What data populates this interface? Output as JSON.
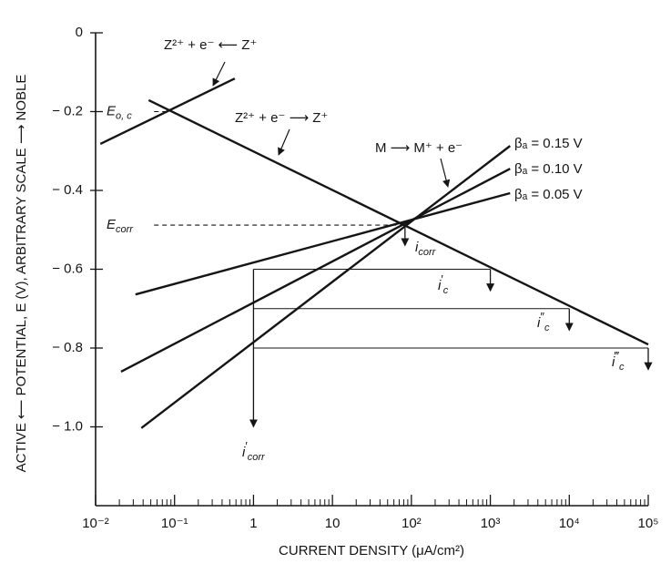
{
  "chart_data": {
    "type": "line",
    "x_label": "CURRENT DENSITY (μA/cm²)",
    "y_label": "ACTIVE ⟵ POTENTIAL, E (V), ARBITRARY SCALE ⟶ NOBLE",
    "xscale": "log",
    "xlim": [
      0.01,
      100000
    ],
    "ylim": [
      -1.2,
      0
    ],
    "xticks": [
      {
        "value": 0.01,
        "label": "10⁻²"
      },
      {
        "value": 0.1,
        "label": "10⁻¹"
      },
      1,
      10,
      {
        "value": 100,
        "label": "10²"
      },
      {
        "value": 1000,
        "label": "10³"
      },
      {
        "value": 10000,
        "label": "10⁴"
      },
      {
        "value": 100000,
        "label": "10⁵"
      }
    ],
    "yticks": [
      0,
      {
        "value": -0.2,
        "label": "− 0.2"
      },
      {
        "value": -0.4,
        "label": "− 0.4"
      },
      {
        "value": -0.6,
        "label": "− 0.6"
      },
      {
        "value": -0.8,
        "label": "− 0.8"
      },
      {
        "value": -1.0,
        "label": "− 1.0"
      }
    ],
    "color": "#151515",
    "series": [
      {
        "name": "Z²⁺ + e⁻ ⟵ Z⁺",
        "x": [
          0.0115,
          0.58
        ],
        "values": [
          -0.282,
          -0.116
        ]
      },
      {
        "name": "Z²⁺ + e⁻ ⟶ Z⁺",
        "x": [
          0.047,
          100000
        ],
        "values": [
          -0.171,
          -0.791
        ]
      },
      {
        "name": "βₐ = 0.15 V",
        "x": [
          0.038,
          1780
        ],
        "values": [
          -1.003,
          -0.287
        ]
      },
      {
        "name": "βₐ = 0.10 V",
        "x": [
          0.021,
          1780
        ],
        "values": [
          -0.86,
          -0.345
        ]
      },
      {
        "name": "βₐ = 0.05 V",
        "x": [
          0.032,
          1780
        ],
        "values": [
          -0.664,
          -0.407
        ]
      }
    ],
    "anodic_reaction": "M ⟶ M⁺ + e⁻",
    "potentials": [
      {
        "label": "E",
        "sub": "o, c",
        "x": [
          0.04,
          0.083
        ],
        "y": -0.2
      },
      {
        "label": "E",
        "sub": "corr",
        "x": [
          0.04,
          83
        ],
        "y": -0.488
      }
    ],
    "levels": [
      {
        "y": -0.6,
        "x": [
          1,
          1000
        ]
      },
      {
        "y": -0.7,
        "x": [
          1,
          10000
        ]
      },
      {
        "y": -0.8,
        "x": [
          1,
          100000
        ]
      }
    ],
    "currents": [
      {
        "label": "i",
        "sub": "corr",
        "x": 83,
        "y": [
          -0.488,
          -0.54
        ]
      },
      {
        "label": "i",
        "sup": "′",
        "sub": "c",
        "x": 1000,
        "y": [
          -0.6,
          -0.655
        ]
      },
      {
        "label": "i",
        "sup": "″",
        "sub": "c",
        "x": 10000,
        "y": [
          -0.7,
          -0.755
        ]
      },
      {
        "label": "i",
        "sup": "‴",
        "sub": "c",
        "x": 100000,
        "y": [
          -0.8,
          -0.855
        ]
      },
      {
        "label": "i",
        "sup": "′",
        "sub": "corr",
        "x": 1,
        "y": [
          -0.6,
          -1.0
        ]
      }
    ]
  }
}
